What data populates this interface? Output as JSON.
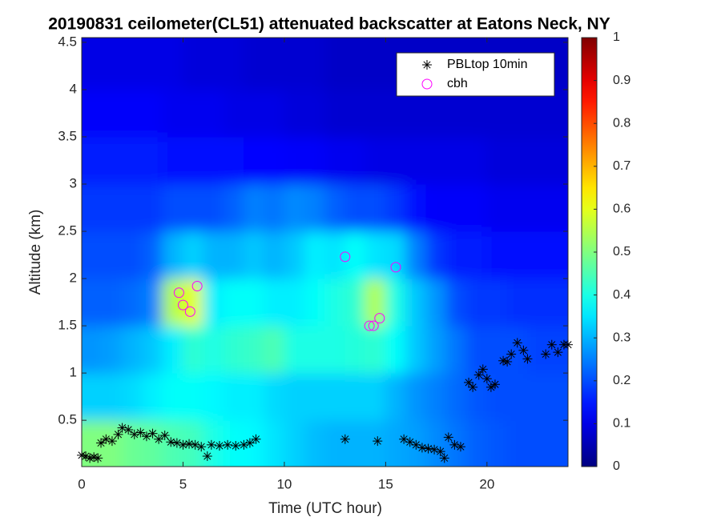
{
  "chart_data": {
    "type": "heatmap",
    "title": "20190831 ceilometer(CL51) attenuated backscatter at Eatons Neck, NY",
    "xlabel": "Time (UTC hour)",
    "ylabel": "Altitude (km)",
    "xlim": [
      0,
      24
    ],
    "ylim": [
      0.01,
      4.55
    ],
    "xticks": [
      0,
      5,
      10,
      15,
      20
    ],
    "yticks": [
      0.5,
      1,
      1.5,
      2,
      2.5,
      3,
      3.5,
      4,
      4.5
    ],
    "colormap": "jet",
    "colorbar": {
      "lim": [
        0,
        1
      ],
      "ticks": [
        0,
        0.1,
        0.2,
        0.3,
        0.4,
        0.5,
        0.6,
        0.7,
        0.8,
        0.9,
        1
      ]
    },
    "legend": "upper right",
    "heatmap": {
      "x_edges": [
        0,
        1,
        2,
        3,
        4,
        5,
        6,
        7,
        8,
        9,
        10,
        11,
        12,
        13,
        14,
        15,
        16,
        17,
        18,
        19,
        20,
        21,
        22,
        23,
        24
      ],
      "y_edges": [
        0,
        0.5,
        1,
        1.5,
        2,
        2.5,
        3,
        3.5,
        4,
        4.5
      ],
      "values": [
        [
          0.5,
          0.5,
          0.48,
          0.47,
          0.45,
          0.44,
          0.4,
          0.38,
          0.37,
          0.35,
          0.33,
          0.31,
          0.3,
          0.3,
          0.3,
          0.29,
          0.28,
          0.26,
          0.24,
          0.22,
          0.21,
          0.2,
          0.2,
          0.2
        ],
        [
          0.33,
          0.33,
          0.34,
          0.36,
          0.38,
          0.38,
          0.37,
          0.36,
          0.36,
          0.34,
          0.33,
          0.33,
          0.33,
          0.33,
          0.33,
          0.3,
          0.27,
          0.25,
          0.23,
          0.21,
          0.2,
          0.2,
          0.2,
          0.2
        ],
        [
          0.27,
          0.28,
          0.3,
          0.32,
          0.36,
          0.42,
          0.4,
          0.42,
          0.43,
          0.45,
          0.4,
          0.4,
          0.4,
          0.41,
          0.42,
          0.38,
          0.32,
          0.28,
          0.24,
          0.2,
          0.2,
          0.2,
          0.19,
          0.19
        ],
        [
          0.22,
          0.22,
          0.23,
          0.25,
          0.55,
          0.6,
          0.36,
          0.38,
          0.38,
          0.36,
          0.36,
          0.38,
          0.4,
          0.42,
          0.55,
          0.4,
          0.32,
          0.27,
          0.2,
          0.18,
          0.18,
          0.17,
          0.17,
          0.17
        ],
        [
          0.2,
          0.2,
          0.2,
          0.22,
          0.3,
          0.33,
          0.3,
          0.3,
          0.32,
          0.3,
          0.32,
          0.36,
          0.35,
          0.38,
          0.35,
          0.34,
          0.25,
          0.18,
          0.15,
          0.15,
          0.14,
          0.14,
          0.14,
          0.14
        ],
        [
          0.18,
          0.18,
          0.18,
          0.18,
          0.2,
          0.2,
          0.2,
          0.22,
          0.25,
          0.24,
          0.26,
          0.25,
          0.22,
          0.2,
          0.2,
          0.18,
          0.14,
          0.12,
          0.12,
          0.12,
          0.11,
          0.11,
          0.11,
          0.11
        ],
        [
          0.15,
          0.15,
          0.15,
          0.15,
          0.14,
          0.14,
          0.14,
          0.14,
          0.13,
          0.13,
          0.12,
          0.12,
          0.11,
          0.11,
          0.1,
          0.1,
          0.1,
          0.1,
          0.1,
          0.1,
          0.09,
          0.09,
          0.09,
          0.09
        ],
        [
          0.12,
          0.12,
          0.12,
          0.12,
          0.11,
          0.11,
          0.11,
          0.1,
          0.1,
          0.1,
          0.09,
          0.09,
          0.08,
          0.08,
          0.08,
          0.08,
          0.08,
          0.08,
          0.08,
          0.08,
          0.08,
          0.08,
          0.08,
          0.08
        ],
        [
          0.1,
          0.1,
          0.1,
          0.1,
          0.1,
          0.09,
          0.09,
          0.09,
          0.08,
          0.08,
          0.08,
          0.08,
          0.07,
          0.07,
          0.07,
          0.07,
          0.07,
          0.07,
          0.07,
          0.07,
          0.07,
          0.07,
          0.07,
          0.07
        ]
      ]
    },
    "series": [
      {
        "name": "PBLtop 10min",
        "color": "#000000",
        "marker": "asterisk",
        "x": [
          0,
          0.2,
          0.4,
          0.6,
          0.8,
          0.95,
          1.2,
          1.5,
          1.8,
          2.0,
          2.3,
          2.6,
          2.9,
          3.2,
          3.5,
          3.8,
          4.1,
          4.4,
          4.7,
          5.0,
          5.3,
          5.6,
          5.9,
          6.2,
          6.4,
          6.8,
          7.2,
          7.6,
          8.0,
          8.3,
          8.6,
          13.0,
          14.6,
          15.9,
          16.2,
          16.5,
          16.8,
          17.1,
          17.4,
          17.7,
          17.9,
          18.1,
          18.4,
          18.7,
          19.1,
          19.3,
          19.6,
          19.8,
          20.0,
          20.2,
          20.4,
          20.8,
          21.0,
          21.2,
          21.5,
          21.8,
          22.0,
          22.9,
          23.2,
          23.5,
          23.8,
          24.0
        ],
        "values": [
          0.13,
          0.12,
          0.1,
          0.11,
          0.1,
          0.26,
          0.3,
          0.28,
          0.35,
          0.42,
          0.4,
          0.35,
          0.37,
          0.33,
          0.36,
          0.3,
          0.34,
          0.27,
          0.26,
          0.24,
          0.25,
          0.24,
          0.22,
          0.12,
          0.24,
          0.23,
          0.24,
          0.23,
          0.24,
          0.26,
          0.3,
          0.3,
          0.28,
          0.3,
          0.27,
          0.24,
          0.21,
          0.2,
          0.19,
          0.17,
          0.1,
          0.32,
          0.24,
          0.22,
          0.9,
          0.85,
          0.98,
          1.04,
          0.94,
          0.85,
          0.88,
          1.13,
          1.12,
          1.2,
          1.32,
          1.24,
          1.15,
          1.2,
          1.3,
          1.22,
          1.3,
          1.3
        ]
      },
      {
        "name": "cbh",
        "color": "#ff00ff",
        "marker": "circle",
        "x": [
          4.8,
          5.0,
          5.35,
          5.7,
          13.0,
          14.2,
          14.4,
          14.7,
          15.5
        ],
        "values": [
          1.85,
          1.72,
          1.65,
          1.92,
          2.23,
          1.5,
          1.5,
          1.58,
          2.12
        ]
      }
    ]
  }
}
